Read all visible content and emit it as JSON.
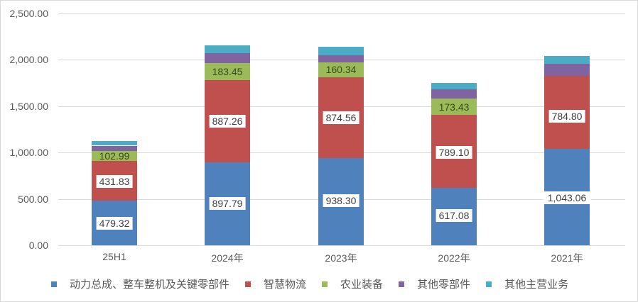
{
  "chart_data": {
    "type": "bar",
    "stacked": true,
    "title": "",
    "xlabel": "",
    "ylabel": "",
    "ylim": [
      0,
      2500
    ],
    "yticks": [
      "0.00",
      "500.00",
      "1,000.00",
      "1,500.00",
      "2,000.00",
      "2,500.00"
    ],
    "grid": true,
    "legend_position": "bottom",
    "categories": [
      "25H1",
      "2024年",
      "2023年",
      "2022年",
      "2021年"
    ],
    "series": [
      {
        "name": "动力总成、整车整机及关键零部件",
        "color": "#4f81bd",
        "values": [
          479.32,
          897.79,
          938.3,
          617.08,
          1043.06
        ],
        "labels": [
          "479.32",
          "897.79",
          "938.30",
          "617.08",
          "1,043.06"
        ]
      },
      {
        "name": "智慧物流",
        "color": "#c0504d",
        "values": [
          431.83,
          887.26,
          874.56,
          789.1,
          784.8
        ],
        "labels": [
          "431.83",
          "887.26",
          "874.56",
          "789.10",
          "784.80"
        ]
      },
      {
        "name": "农业装备",
        "color": "#9bbb59",
        "values": [
          102.99,
          183.45,
          160.34,
          173.43,
          0
        ],
        "labels": [
          "102.99",
          "183.45",
          "160.34",
          "173.43",
          ""
        ]
      },
      {
        "name": "其他零部件",
        "color": "#8064a2",
        "values": [
          60,
          100,
          75,
          100,
          130
        ],
        "labels": [
          "",
          "",
          "",
          "",
          ""
        ]
      },
      {
        "name": "其他主营业务",
        "color": "#4bacc6",
        "values": [
          50,
          88,
          93,
          71,
          83
        ],
        "labels": [
          "",
          "",
          "",
          "",
          ""
        ]
      }
    ]
  },
  "legend": {
    "items": [
      {
        "label": "动力总成、整车整机及关键零部件",
        "color": "#4f81bd"
      },
      {
        "label": "智慧物流",
        "color": "#c0504d"
      },
      {
        "label": "农业装备",
        "color": "#9bbb59"
      },
      {
        "label": "其他零部件",
        "color": "#8064a2"
      },
      {
        "label": "其他主营业务",
        "color": "#4bacc6"
      }
    ]
  }
}
